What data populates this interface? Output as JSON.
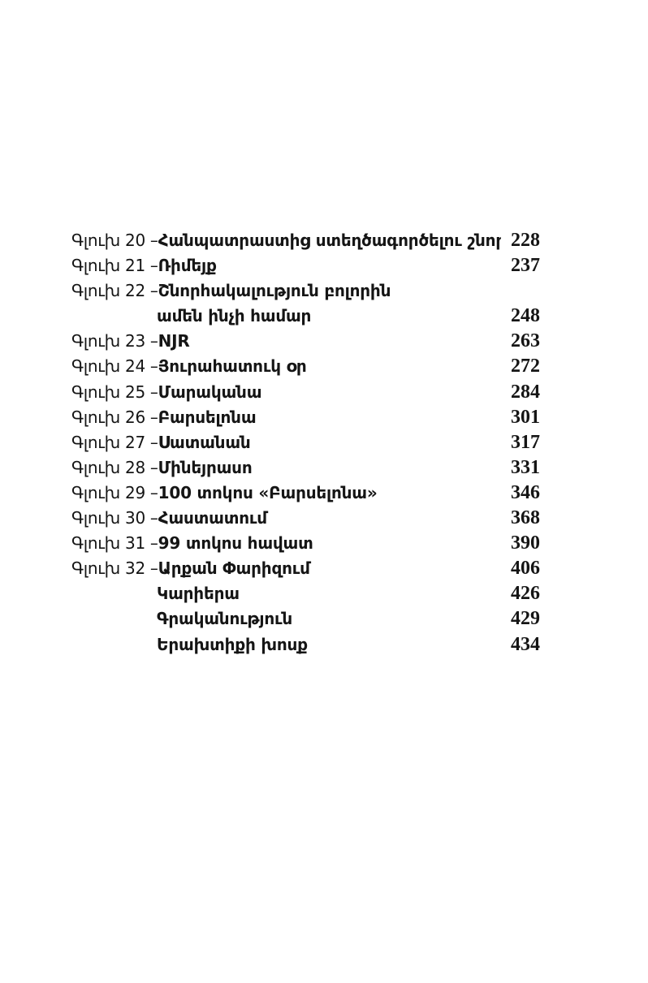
{
  "page": {
    "background": "#ffffff",
    "text_color": "#151515"
  },
  "toc": {
    "rows": [
      {
        "prefix": "Գլուխ 20 –",
        "title": "Հանպատրաստից ստեղծագործելու շնորհը",
        "page": "228"
      },
      {
        "prefix": "Գլուխ 21 –",
        "title": "Ռիմեյք",
        "page": "237"
      },
      {
        "prefix": "Գլուխ 22 –",
        "title": "Շնորհակալություն բոլորին",
        "page": ""
      },
      {
        "prefix": "",
        "title": "ամեն ինչի համար",
        "page": "248"
      },
      {
        "prefix": "Գլուխ 23 –",
        "title": "NJR",
        "page": "263"
      },
      {
        "prefix": "Գլուխ 24 –",
        "title": "Յուրահատուկ օր",
        "page": "272"
      },
      {
        "prefix": "Գլուխ 25 –",
        "title": "Մարականա",
        "page": "284"
      },
      {
        "prefix": "Գլուխ 26 –",
        "title": "Բարսելոնա",
        "page": "301"
      },
      {
        "prefix": "Գլուխ 27 –",
        "title": "Սատանան",
        "page": "317"
      },
      {
        "prefix": "Գլուխ 28 –",
        "title": "Մինեյրասո",
        "page": "331"
      },
      {
        "prefix": "Գլուխ 29 –",
        "title": "100 տոկոս «Բարսելոնա»",
        "page": "346"
      },
      {
        "prefix": "Գլուխ 30 –",
        "title": "Հաստատում",
        "page": "368"
      },
      {
        "prefix": "Գլուխ 31 –",
        "title": "99 տոկոս հավատ",
        "page": "390"
      },
      {
        "prefix": "Գլուխ 32 –",
        "title": "Արքան Փարիզում",
        "page": "406"
      },
      {
        "prefix": "",
        "title": "Կարիերա",
        "page": "426"
      },
      {
        "prefix": "",
        "title": "Գրականություն",
        "page": "429"
      },
      {
        "prefix": "",
        "title": "Երախտիքի խոսք",
        "page": "434"
      }
    ]
  }
}
